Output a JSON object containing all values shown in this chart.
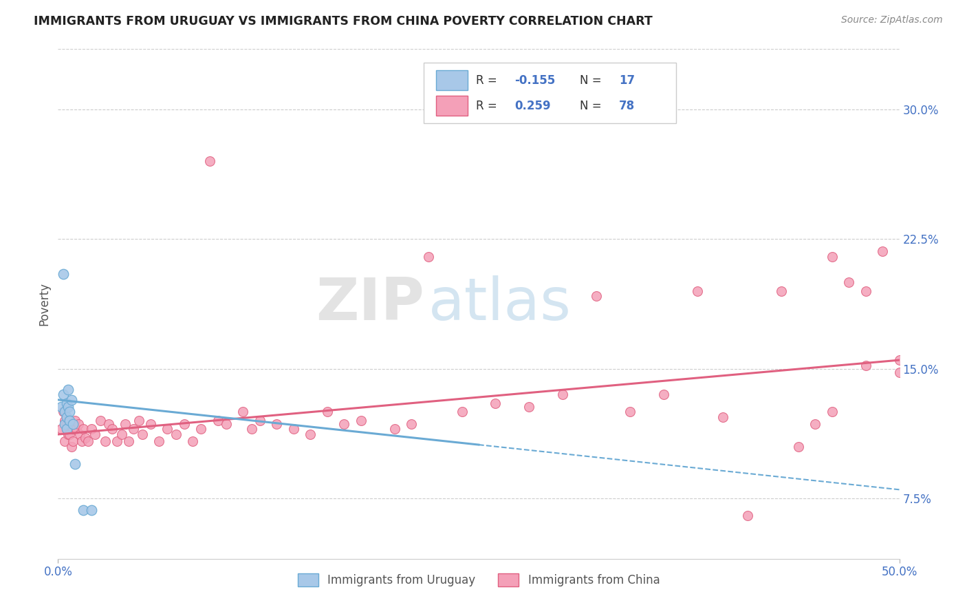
{
  "title": "IMMIGRANTS FROM URUGUAY VS IMMIGRANTS FROM CHINA POVERTY CORRELATION CHART",
  "source": "Source: ZipAtlas.com",
  "ylabel": "Poverty",
  "y_ticks": [
    "7.5%",
    "15.0%",
    "22.5%",
    "30.0%"
  ],
  "y_tick_vals": [
    0.075,
    0.15,
    0.225,
    0.3
  ],
  "xlim": [
    0.0,
    0.5
  ],
  "ylim": [
    0.04,
    0.335
  ],
  "watermark_zip": "ZIP",
  "watermark_atlas": "atlas",
  "legend_r_uruguay": "-0.155",
  "legend_n_uruguay": "17",
  "legend_r_china": "0.259",
  "legend_n_china": "78",
  "color_uruguay": "#a8c8e8",
  "color_china": "#f4a0b8",
  "line_uruguay": "#6aaad4",
  "line_china": "#e06080",
  "trendline_uru_x0": 0.0,
  "trendline_uru_y0": 0.132,
  "trendline_uru_x1": 0.5,
  "trendline_uru_y1": 0.08,
  "trendline_uru_solid_end": 0.25,
  "trendline_china_x0": 0.0,
  "trendline_china_y0": 0.112,
  "trendline_china_x1": 0.5,
  "trendline_china_y1": 0.155,
  "uruguay_x": [
    0.002,
    0.003,
    0.003,
    0.004,
    0.004,
    0.005,
    0.005,
    0.005,
    0.006,
    0.006,
    0.007,
    0.007,
    0.008,
    0.009,
    0.01,
    0.015,
    0.02
  ],
  "uruguay_y": [
    0.128,
    0.205,
    0.135,
    0.125,
    0.118,
    0.13,
    0.122,
    0.115,
    0.138,
    0.128,
    0.125,
    0.12,
    0.132,
    0.118,
    0.095,
    0.068,
    0.068
  ],
  "china_x": [
    0.002,
    0.003,
    0.004,
    0.004,
    0.005,
    0.005,
    0.006,
    0.006,
    0.007,
    0.007,
    0.008,
    0.008,
    0.009,
    0.009,
    0.01,
    0.011,
    0.012,
    0.013,
    0.014,
    0.015,
    0.016,
    0.018,
    0.02,
    0.022,
    0.025,
    0.028,
    0.03,
    0.032,
    0.035,
    0.038,
    0.04,
    0.042,
    0.045,
    0.048,
    0.05,
    0.055,
    0.06,
    0.065,
    0.07,
    0.075,
    0.08,
    0.085,
    0.09,
    0.095,
    0.1,
    0.11,
    0.115,
    0.12,
    0.13,
    0.14,
    0.15,
    0.16,
    0.17,
    0.18,
    0.2,
    0.21,
    0.22,
    0.24,
    0.26,
    0.28,
    0.3,
    0.32,
    0.34,
    0.36,
    0.38,
    0.395,
    0.41,
    0.43,
    0.45,
    0.46,
    0.47,
    0.48,
    0.49,
    0.5,
    0.5,
    0.48,
    0.46,
    0.44
  ],
  "china_y": [
    0.115,
    0.125,
    0.108,
    0.12,
    0.115,
    0.118,
    0.112,
    0.12,
    0.118,
    0.112,
    0.105,
    0.118,
    0.115,
    0.108,
    0.12,
    0.115,
    0.118,
    0.112,
    0.108,
    0.115,
    0.11,
    0.108,
    0.115,
    0.112,
    0.12,
    0.108,
    0.118,
    0.115,
    0.108,
    0.112,
    0.118,
    0.108,
    0.115,
    0.12,
    0.112,
    0.118,
    0.108,
    0.115,
    0.112,
    0.118,
    0.108,
    0.115,
    0.27,
    0.12,
    0.118,
    0.125,
    0.115,
    0.12,
    0.118,
    0.115,
    0.112,
    0.125,
    0.118,
    0.12,
    0.115,
    0.118,
    0.215,
    0.125,
    0.13,
    0.128,
    0.135,
    0.192,
    0.125,
    0.135,
    0.195,
    0.122,
    0.065,
    0.195,
    0.118,
    0.125,
    0.2,
    0.152,
    0.218,
    0.155,
    0.148,
    0.195,
    0.215,
    0.105
  ]
}
